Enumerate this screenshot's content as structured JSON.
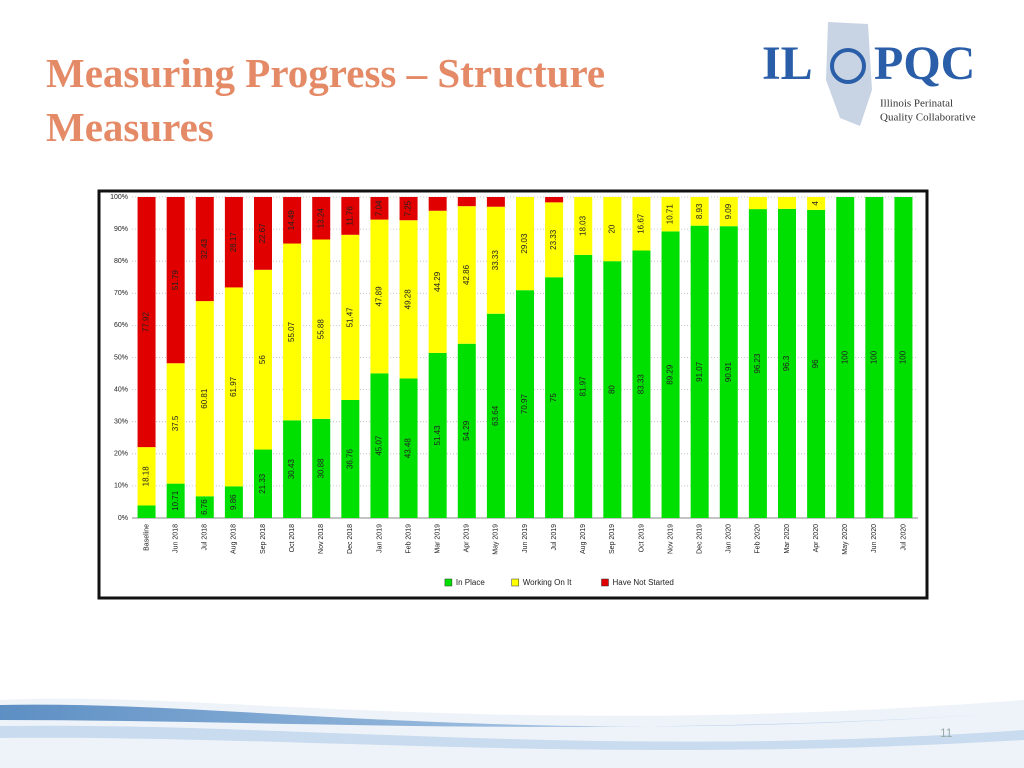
{
  "header": {
    "title_lines": [
      "Measuring Progress – Structure",
      "Measures"
    ]
  },
  "logo": {
    "left": "IL",
    "right": "PQC",
    "lines": [
      "Illinois Perinatal",
      "Quality Collaborative"
    ]
  },
  "footer": {
    "page_number": "11"
  },
  "chart_data": {
    "type": "stacked_bar",
    "categories": [
      "Baseline",
      "Jun 2018",
      "Jul 2018",
      "Aug 2018",
      "Sep 2018",
      "Oct 2018",
      "Nov 2018",
      "Dec 2018",
      "Jan 2019",
      "Feb 2019",
      "Mar 2019",
      "Apr 2019",
      "May 2019",
      "Jun 2019",
      "Jul 2019",
      "Aug 2019",
      "Sep 2019",
      "Oct 2019",
      "Nov 2019",
      "Dec 2019",
      "Jan 2020",
      "Feb 2020",
      "Mar 2020",
      "Apr 2020",
      "May 2020",
      "Jun 2020",
      "Jul 2020"
    ],
    "series": [
      {
        "name": "In Place",
        "color": "#00e000",
        "values": [
          3.9,
          10.71,
          6.76,
          9.86,
          21.33,
          30.43,
          30.88,
          36.76,
          45.07,
          43.48,
          51.43,
          54.29,
          63.64,
          70.97,
          75,
          81.97,
          80,
          83.33,
          89.29,
          91.07,
          90.91,
          96.23,
          96.3,
          96,
          100,
          100,
          100
        ],
        "value_labels": [
          null,
          "10.71",
          "6.76",
          "9.86",
          "21.33",
          "30.43",
          "30.88",
          "36.76",
          "45.07",
          "43.48",
          "51.43",
          "54.29",
          "63.64",
          "70.97",
          "75",
          "81.97",
          "80",
          "83.33",
          "89.29",
          "91.07",
          "90.91",
          "96.23",
          "96.3",
          "96",
          "100",
          "100",
          "100"
        ]
      },
      {
        "name": "Working On It",
        "color": "#ffff00",
        "values": [
          18.18,
          37.5,
          60.81,
          61.97,
          56,
          55.07,
          55.88,
          51.47,
          47.89,
          49.28,
          44.29,
          42.86,
          33.33,
          29.03,
          23.33,
          18.03,
          20,
          16.67,
          10.71,
          8.93,
          9.09,
          3.77,
          3.7,
          4,
          0,
          0,
          0
        ],
        "value_labels": [
          "18.18",
          "37.5",
          "60.81",
          "61.97",
          "56",
          "55.07",
          "55.88",
          "51.47",
          "47.89",
          "49.28",
          "44.29",
          "42.86",
          "33.33",
          "29.03",
          "23.33",
          "18.03",
          "20",
          "16.67",
          "10.71",
          "8.93",
          "9.09",
          null,
          null,
          "4",
          null,
          null,
          null
        ]
      },
      {
        "name": "Have Not Started",
        "color": "#e00000",
        "values": [
          77.92,
          51.79,
          32.43,
          28.17,
          22.67,
          14.49,
          13.24,
          11.76,
          7.04,
          7.25,
          4.28,
          2.85,
          3.03,
          0,
          1.67,
          0,
          0,
          0,
          0,
          0,
          0,
          0,
          0,
          0,
          0,
          0,
          0
        ],
        "value_labels": [
          "77.92",
          "51.79",
          "32.43",
          "28.17",
          "22.67",
          "14.49",
          "13.24",
          "11.76",
          "7.04",
          "7.25",
          null,
          null,
          null,
          null,
          null,
          null,
          null,
          null,
          null,
          null,
          null,
          null,
          null,
          null,
          null,
          null,
          null
        ]
      }
    ],
    "ylim": [
      0,
      100
    ],
    "yticks": [
      {
        "value": 0,
        "label": "0%"
      },
      {
        "value": 10,
        "label": "10%"
      },
      {
        "value": 20,
        "label": "20%"
      },
      {
        "value": 30,
        "label": "30%"
      },
      {
        "value": 40,
        "label": "40%"
      },
      {
        "value": 50,
        "label": "50%"
      },
      {
        "value": 60,
        "label": "60%"
      },
      {
        "value": 70,
        "label": "70%"
      },
      {
        "value": 80,
        "label": "80%"
      },
      {
        "value": 90,
        "label": "90%"
      },
      {
        "value": 100,
        "label": "100%"
      }
    ],
    "grid": true,
    "legend": "bottom"
  }
}
